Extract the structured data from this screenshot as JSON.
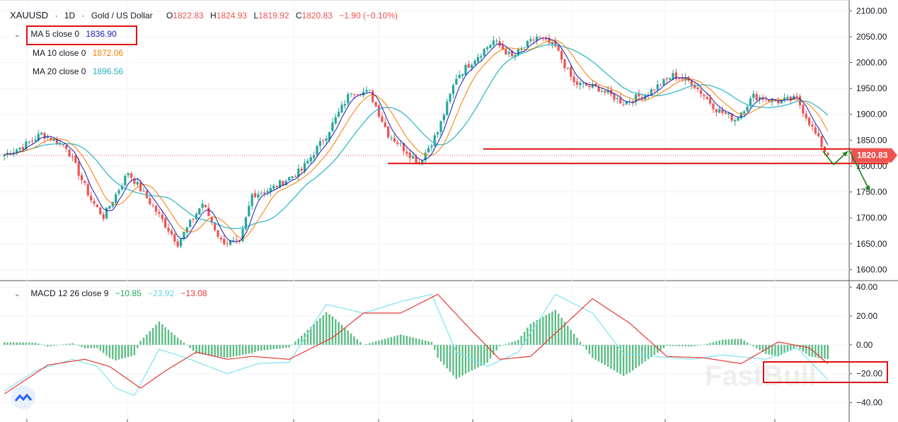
{
  "header": {
    "symbol": "XAUUSD",
    "interval": "1D",
    "name": "Gold / US Dollar",
    "open_label": "O",
    "open": "1822.83",
    "high_label": "H",
    "high": "1824.93",
    "low_label": "L",
    "low": "1819.92",
    "close_label": "C",
    "close": "1820.83",
    "change": "−1.90 (−0.10%)"
  },
  "indicators": {
    "ma5": {
      "label": "MA 5 close 0",
      "value": "1836.90",
      "color": "#1a1aaa"
    },
    "ma10": {
      "label": "MA 10 close 0",
      "value": "1872.06",
      "color": "#f57c00"
    },
    "ma20": {
      "label": "MA 20 close 0",
      "value": "1896.56",
      "color": "#26b5c5"
    },
    "macd": {
      "label": "MACD 12 26 close 9",
      "hist": "−10.85",
      "macd": "−23.92",
      "signal": "−13.08",
      "hist_color": "#26a65b",
      "macd_color": "#7fe3f0",
      "signal_color": "#e53935"
    }
  },
  "price_badge": "1820.83",
  "watermark": "FastBull",
  "colors": {
    "up": "#26a69a",
    "down": "#ef5350",
    "annotation_red": "#e01010",
    "annotation_green": "#1a7f1a"
  },
  "chart_data": [
    {
      "type": "candlestick",
      "price_ticks": [
        "2100.00",
        "2050.00",
        "2000.00",
        "1950.00",
        "1900.00",
        "1850.00",
        "1800.00",
        "1750.00",
        "1700.00",
        "1650.00",
        "1600.00"
      ],
      "ylim": [
        1580,
        2110
      ],
      "anchors": [
        [
          0,
          1822
        ],
        [
          6,
          1838
        ],
        [
          12,
          1862
        ],
        [
          20,
          1838
        ],
        [
          28,
          1735
        ],
        [
          32,
          1702
        ],
        [
          40,
          1788
        ],
        [
          48,
          1722
        ],
        [
          56,
          1651
        ],
        [
          64,
          1728
        ],
        [
          70,
          1655
        ],
        [
          76,
          1650
        ],
        [
          80,
          1745
        ],
        [
          86,
          1755
        ],
        [
          96,
          1792
        ],
        [
          104,
          1860
        ],
        [
          112,
          1945
        ],
        [
          118,
          1942
        ],
        [
          124,
          1862
        ],
        [
          134,
          1806
        ],
        [
          140,
          1866
        ],
        [
          146,
          1972
        ],
        [
          152,
          2008
        ],
        [
          158,
          2042
        ],
        [
          164,
          2010
        ],
        [
          172,
          2050
        ],
        [
          178,
          2030
        ],
        [
          184,
          1960
        ],
        [
          192,
          1950
        ],
        [
          200,
          1922
        ],
        [
          208,
          1942
        ],
        [
          216,
          1975
        ],
        [
          222,
          1962
        ],
        [
          230,
          1910
        ],
        [
          236,
          1890
        ],
        [
          242,
          1935
        ],
        [
          250,
          1925
        ],
        [
          256,
          1930
        ],
        [
          262,
          1862
        ],
        [
          266,
          1818
        ]
      ],
      "annotations": {
        "support_level": 1805,
        "resistance_level": 1833
      }
    },
    {
      "type": "macd",
      "ticks": [
        "40.00",
        "20.00",
        "0.00",
        "−20.00",
        "−40.00"
      ],
      "ylim": [
        -50,
        44
      ],
      "macd_anchors": [
        [
          0,
          -32
        ],
        [
          10,
          -18
        ],
        [
          22,
          -10
        ],
        [
          30,
          -15
        ],
        [
          36,
          -30
        ],
        [
          42,
          -35
        ],
        [
          50,
          -3
        ],
        [
          60,
          -10
        ],
        [
          72,
          -20
        ],
        [
          82,
          -13
        ],
        [
          92,
          -12
        ],
        [
          104,
          28
        ],
        [
          116,
          22
        ],
        [
          128,
          30
        ],
        [
          138,
          35
        ],
        [
          146,
          -5
        ],
        [
          156,
          -15
        ],
        [
          166,
          -5
        ],
        [
          178,
          35
        ],
        [
          190,
          22
        ],
        [
          200,
          -6
        ],
        [
          210,
          -8
        ],
        [
          222,
          -10
        ],
        [
          232,
          -7
        ],
        [
          246,
          -10
        ],
        [
          256,
          -2
        ],
        [
          266,
          -24
        ]
      ],
      "signal_anchors": [
        [
          0,
          -34
        ],
        [
          14,
          -14
        ],
        [
          26,
          -10
        ],
        [
          34,
          -15
        ],
        [
          44,
          -30
        ],
        [
          52,
          -18
        ],
        [
          62,
          -5
        ],
        [
          72,
          -10
        ],
        [
          80,
          -8
        ],
        [
          92,
          -10
        ],
        [
          106,
          5
        ],
        [
          116,
          22
        ],
        [
          128,
          22
        ],
        [
          140,
          35
        ],
        [
          150,
          12
        ],
        [
          160,
          -10
        ],
        [
          170,
          -8
        ],
        [
          180,
          12
        ],
        [
          190,
          32
        ],
        [
          202,
          15
        ],
        [
          214,
          -8
        ],
        [
          226,
          -9
        ],
        [
          238,
          -13
        ],
        [
          250,
          2
        ],
        [
          260,
          -2
        ],
        [
          266,
          -13
        ]
      ]
    }
  ]
}
